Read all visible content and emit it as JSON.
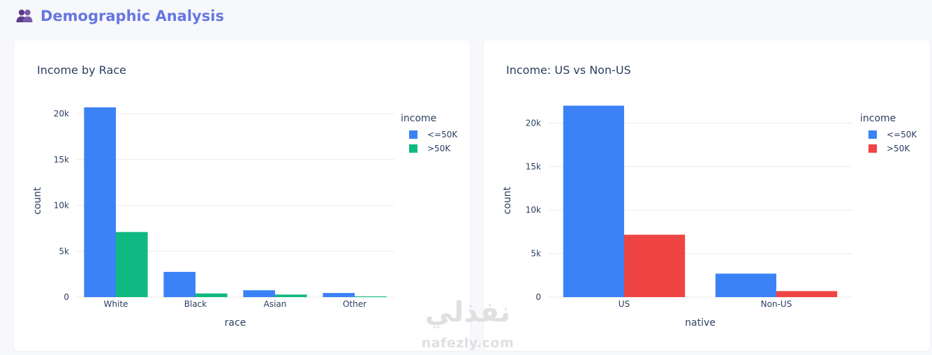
{
  "header": {
    "title": "Demographic Analysis",
    "icon": "users-icon",
    "title_color": "#6777e0",
    "icon_color": "#5a3d8a"
  },
  "colors": {
    "le50k": "#3b82f6",
    "gt50k_race": "#10b981",
    "gt50k_native": "#ef4444",
    "grid": "#ebebeb",
    "text": "#2a3f5f"
  },
  "chart_data": [
    {
      "type": "bar",
      "title": "Income by Race",
      "xlabel": "race",
      "ylabel": "count",
      "categories": [
        "White",
        "Black",
        "Asian",
        "Other"
      ],
      "series": [
        {
          "name": "<=50K",
          "values": [
            20700,
            2750,
            750,
            450
          ]
        },
        {
          "name": ">50K",
          "values": [
            7100,
            400,
            280,
            80
          ]
        }
      ],
      "ylim": [
        0,
        21000
      ],
      "yticks": [
        0,
        5000,
        10000,
        15000,
        20000
      ],
      "ytick_labels": [
        "0",
        "5k",
        "10k",
        "15k",
        "20k"
      ],
      "legend_title": "income",
      "legend_position": "top-right",
      "grid": true,
      "colors": [
        "#3b82f6",
        "#10b981"
      ]
    },
    {
      "type": "bar",
      "title": "Income: US vs Non-US",
      "xlabel": "native",
      "ylabel": "count",
      "categories": [
        "US",
        "Non-US"
      ],
      "series": [
        {
          "name": "<=50K",
          "values": [
            22000,
            2700
          ]
        },
        {
          "name": ">50K",
          "values": [
            7170,
            690
          ]
        }
      ],
      "ylim": [
        0,
        22200
      ],
      "yticks": [
        0,
        5000,
        10000,
        15000,
        20000
      ],
      "ytick_labels": [
        "0",
        "5k",
        "10k",
        "15k",
        "20k"
      ],
      "legend_title": "income",
      "legend_position": "top-right",
      "grid": true,
      "colors": [
        "#3b82f6",
        "#ef4444"
      ]
    }
  ],
  "watermark": {
    "arabic": "نفذلي",
    "latin": "nafezly.com"
  }
}
